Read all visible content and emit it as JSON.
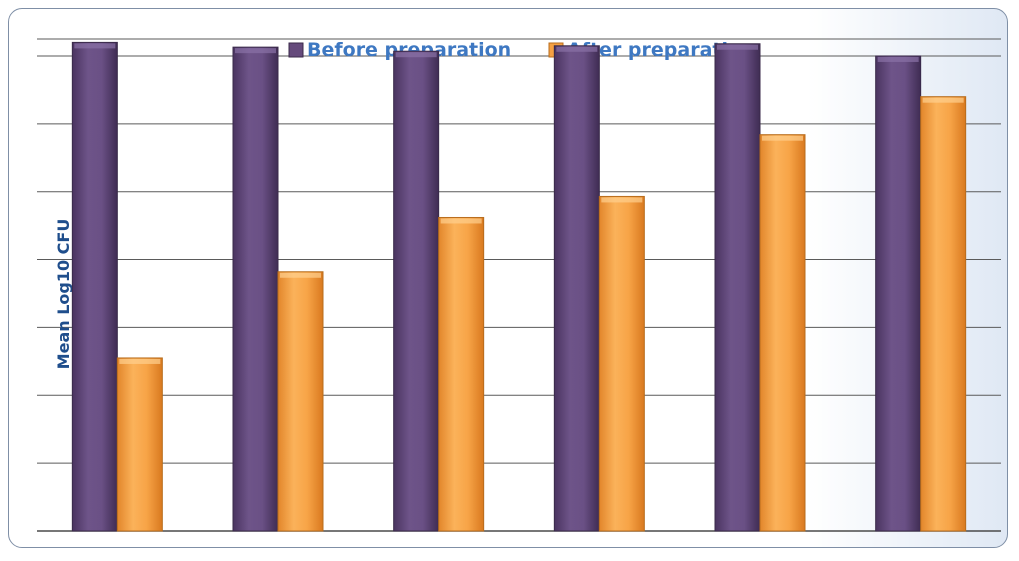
{
  "chart_data": {
    "type": "bar",
    "title": "",
    "xlabel": "",
    "ylabel": "Mean Log10 CFU",
    "categories": [
      "",
      "",
      "",
      "",
      "",
      ""
    ],
    "ylim": [
      0,
      7.25
    ],
    "grid": true,
    "legend_position": "top",
    "series": [
      {
        "name": "Before preparation",
        "color": "#654a7c",
        "values": [
          7.2,
          7.13,
          7.07,
          7.15,
          7.18,
          7.0
        ]
      },
      {
        "name": "After preparation",
        "color": "#f5a042",
        "values": [
          2.55,
          3.82,
          4.62,
          4.93,
          5.84,
          6.4
        ]
      }
    ]
  },
  "legend": {
    "before_label": "Before preparation",
    "after_label": "After preparation"
  },
  "axis": {
    "y_title": "Mean Log10 CFU"
  }
}
